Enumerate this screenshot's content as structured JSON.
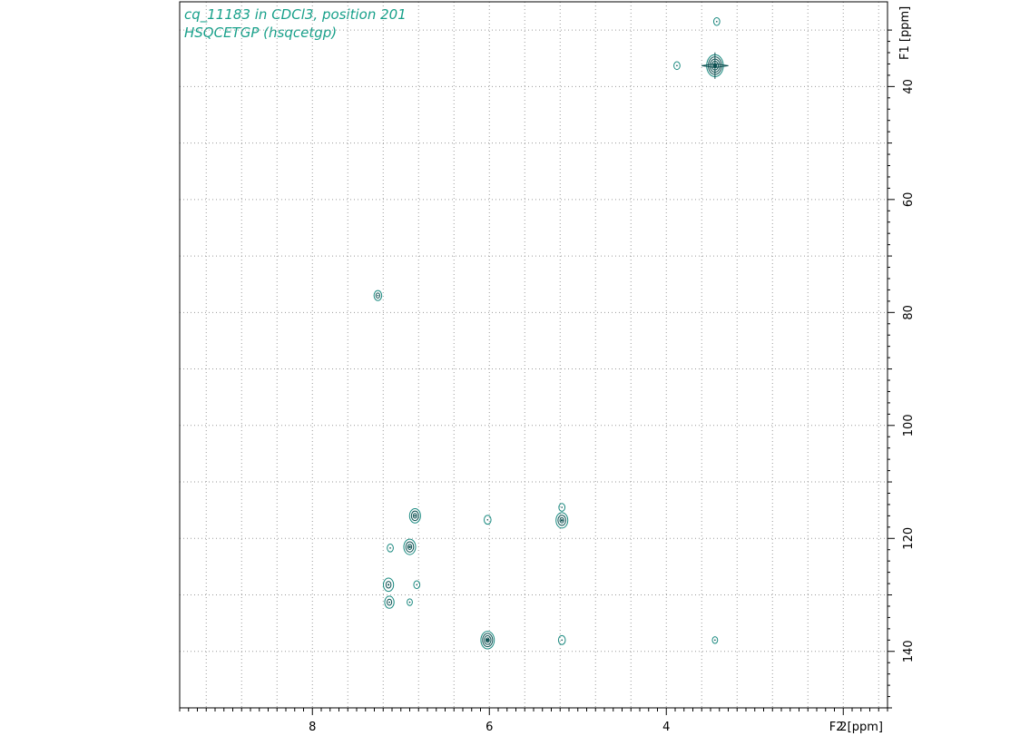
{
  "title": {
    "line1": "cq_11183 in CDCl3, position 201",
    "line2": "HSQCETGP (hsqcetgp)"
  },
  "colors": {
    "contour": "#0b4f50",
    "contour_light": "#1a8a80",
    "title": "#17a08a",
    "grid": "#9a9a9a"
  },
  "chart_data": {
    "type": "scatter",
    "subtype": "2D NMR HSQC contour plot",
    "xlabel": "F2 [ppm]",
    "ylabel": "F1 [ppm]",
    "xlim": [
      9.5,
      1.5
    ],
    "ylim": [
      25,
      150
    ],
    "x_reversed": true,
    "x_ticks": [
      8,
      6,
      4,
      2
    ],
    "y_ticks": [
      40,
      60,
      80,
      100,
      120,
      140
    ],
    "grid": true,
    "points": [
      {
        "x": 3.43,
        "y": 28.5,
        "size": 0.3
      },
      {
        "x": 3.88,
        "y": 36.3,
        "size": 0.3
      },
      {
        "x": 3.45,
        "y": 36.3,
        "size": 1.6
      },
      {
        "x": 7.26,
        "y": 77.0,
        "size": 0.5
      },
      {
        "x": 6.84,
        "y": 116.0,
        "size": 0.9
      },
      {
        "x": 6.02,
        "y": 116.7,
        "size": 0.4
      },
      {
        "x": 5.18,
        "y": 114.5,
        "size": 0.3
      },
      {
        "x": 5.18,
        "y": 116.8,
        "size": 1.0
      },
      {
        "x": 7.12,
        "y": 121.7,
        "size": 0.3
      },
      {
        "x": 6.9,
        "y": 121.5,
        "size": 1.0
      },
      {
        "x": 6.82,
        "y": 128.2,
        "size": 0.3
      },
      {
        "x": 7.14,
        "y": 128.2,
        "size": 0.8
      },
      {
        "x": 7.13,
        "y": 131.3,
        "size": 0.7
      },
      {
        "x": 6.9,
        "y": 131.3,
        "size": 0.2
      },
      {
        "x": 6.02,
        "y": 138.0,
        "size": 1.2
      },
      {
        "x": 5.18,
        "y": 138.0,
        "size": 0.4
      },
      {
        "x": 3.45,
        "y": 138.0,
        "size": 0.2
      }
    ]
  }
}
